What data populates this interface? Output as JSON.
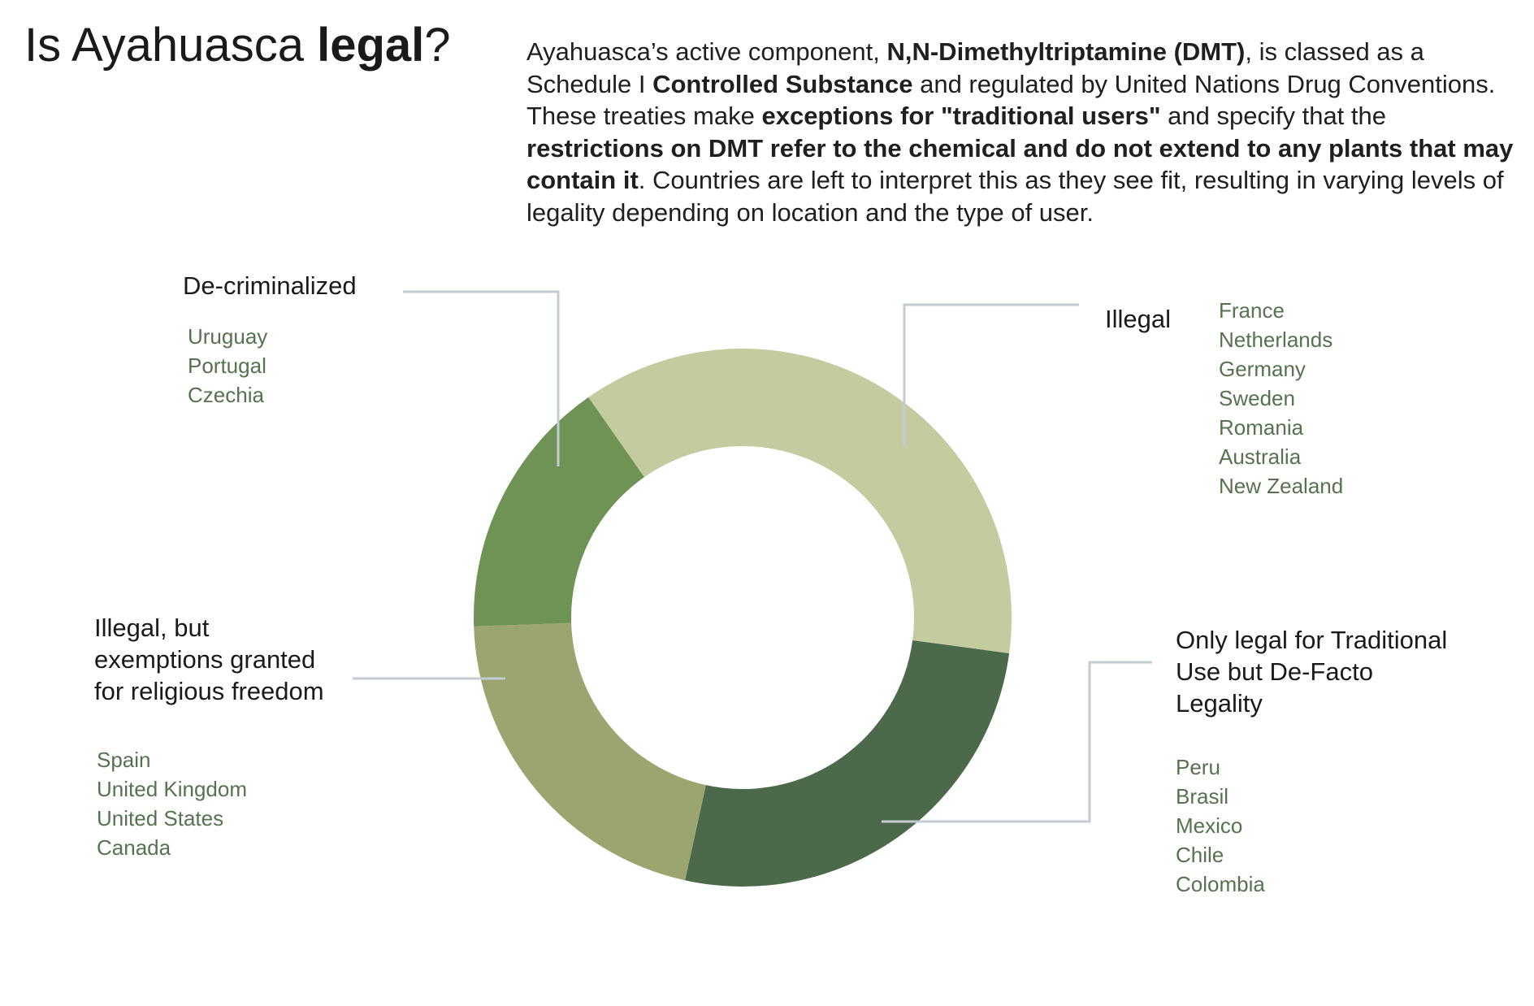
{
  "title": {
    "prefix": "Is Ayahuasca ",
    "bold": "legal",
    "suffix": "?"
  },
  "intro": [
    {
      "text": "Ayahuasca’s active component, ",
      "bold": false
    },
    {
      "text": "N,N-Dimethyltriptamine (DMT)",
      "bold": true
    },
    {
      "text": ", is classed as a Schedule I ",
      "bold": false
    },
    {
      "text": "Controlled Substance",
      "bold": true
    },
    {
      "text": " and regulated by United Nations Drug Conventions. These treaties make ",
      "bold": false
    },
    {
      "text": "exceptions for \"traditional users\"",
      "bold": true
    },
    {
      "text": " and specify that the ",
      "bold": false
    },
    {
      "text": "restrictions on DMT refer to the chemical and do not extend to any plants that may contain it",
      "bold": true
    },
    {
      "text": ". Countries are left to interpret this as they see fit, resulting in varying levels of legality depending on location and the type of user.",
      "bold": false
    }
  ],
  "chart_data": {
    "type": "pie",
    "variant": "donut",
    "start_angle_deg": -35,
    "direction": "clockwise",
    "categories": [
      "Illegal",
      "Only legal for Traditional Use but De-Facto Legality",
      "Illegal, but exemptions granted for religious freedom",
      "De-criminalized"
    ],
    "values": [
      7,
      5,
      4,
      3
    ],
    "slices": [
      {
        "id": "illegal",
        "label_lines": [
          "Illegal"
        ],
        "value": 7,
        "color": "#c4cb9f",
        "countries": [
          "France",
          "Netherlands",
          "Germany",
          "Sweden",
          "Romania",
          "Australia",
          "New Zealand"
        ]
      },
      {
        "id": "traditional",
        "label_lines": [
          "Only legal for Traditional",
          "Use but De-Facto",
          "Legality"
        ],
        "value": 5,
        "color": "#4c6a4b",
        "countries": [
          "Peru",
          "Brasil",
          "Mexico",
          "Chile",
          "Colombia"
        ]
      },
      {
        "id": "religious",
        "label_lines": [
          "Illegal, but",
          "exemptions granted",
          "for religious freedom"
        ],
        "value": 4,
        "color": "#9ba56f",
        "countries": [
          "Spain",
          "United Kingdom",
          "United States",
          "Canada"
        ]
      },
      {
        "id": "decriminalized",
        "label_lines": [
          "De-criminalized"
        ],
        "value": 3,
        "color": "#6f9255",
        "countries": [
          "Uruguay",
          "Portugal",
          "Czechia"
        ]
      }
    ],
    "leader_color": "#c2ccd1",
    "country_color": "#55734f"
  }
}
